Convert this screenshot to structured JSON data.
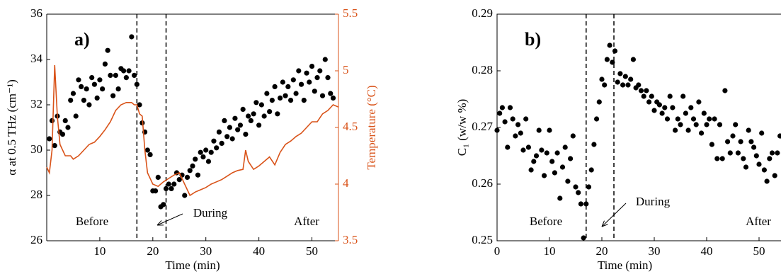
{
  "chart_data": [
    {
      "type": "scatter",
      "panel": "a)",
      "xlabel": "Time (min)",
      "ylabel": "α at 0.5 THz (cm⁻¹)",
      "y2label": "Temperature (°C)",
      "xlim": [
        0,
        55
      ],
      "xticks": [
        10,
        20,
        30,
        40,
        50
      ],
      "ylim": [
        26,
        36
      ],
      "yticks": [
        26,
        28,
        30,
        32,
        34,
        36
      ],
      "y2lim": [
        3.5,
        5.5
      ],
      "y2ticks": [
        3.5,
        4,
        4.5,
        5,
        5.5
      ],
      "vlines": [
        17,
        22.5
      ],
      "annotations": [
        "Before",
        "During",
        "After"
      ],
      "series": [
        {
          "type": "scatter",
          "color": "#000000",
          "x": [
            0.5,
            1,
            1.5,
            2,
            2.5,
            3,
            3.5,
            4,
            4.5,
            5,
            5.5,
            6,
            6.5,
            7,
            7.5,
            8,
            8.5,
            9,
            9.5,
            10,
            10.5,
            11,
            11.5,
            12,
            12.5,
            13,
            13.5,
            14,
            14.5,
            15,
            15.5,
            16,
            16.5,
            17,
            17.5,
            18,
            18.5,
            19,
            19.5,
            20,
            20.5,
            21,
            21.5,
            22,
            22.5,
            23,
            23.5,
            24,
            24.5,
            25,
            25.5,
            26,
            26.5,
            27,
            27.5,
            28,
            28.5,
            29,
            29.5,
            30,
            30.5,
            31,
            31.5,
            32,
            32.5,
            33,
            33.5,
            34,
            34.5,
            35,
            35.5,
            36,
            36.5,
            37,
            37.5,
            38,
            38.5,
            39,
            39.5,
            40,
            40.5,
            41,
            41.5,
            42,
            42.5,
            43,
            43.5,
            44,
            44.5,
            45,
            45.5,
            46,
            46.5,
            47,
            47.5,
            48,
            48.5,
            49,
            49.5,
            50,
            50.5,
            51,
            51.5,
            52,
            52.5,
            53,
            53.5,
            54
          ],
          "values": [
            30.5,
            31.3,
            30.2,
            31.5,
            30.8,
            30.7,
            31.3,
            31,
            32.2,
            32.5,
            31.5,
            33.1,
            32.8,
            32.2,
            32.7,
            32,
            33.2,
            32.9,
            32.3,
            33.1,
            32.7,
            33.8,
            34.4,
            33.3,
            32.4,
            33.3,
            32.7,
            33.6,
            33.5,
            33.2,
            33.5,
            35,
            33.3,
            32.9,
            32,
            31.2,
            30.8,
            30,
            29.8,
            28.2,
            28.2,
            28.8,
            27.5,
            27.6,
            28.3,
            28.5,
            28.3,
            28.5,
            29,
            28.7,
            28.9,
            28,
            28.8,
            29.1,
            29.3,
            29.6,
            28.9,
            29.9,
            29.7,
            30,
            29.5,
            29.9,
            30.4,
            30.1,
            30.8,
            30.3,
            31.3,
            30.6,
            31,
            30.5,
            31.4,
            30.9,
            31.1,
            31.8,
            30.7,
            31.5,
            31.3,
            31.6,
            32.1,
            31.1,
            32,
            31.5,
            32.5,
            31.7,
            32.2,
            32.8,
            31.6,
            32.3,
            33,
            32.4,
            32.8,
            32.2,
            33.1,
            32.5,
            33.5,
            32.9,
            32.2,
            33.4,
            33,
            33.7,
            32.6,
            33.2,
            33.5,
            32.4,
            34,
            33.2,
            32.5,
            32.3
          ]
        },
        {
          "type": "line",
          "color": "#d95319",
          "axis": "y2",
          "x": [
            0,
            0.5,
            1,
            1.5,
            2,
            2.5,
            3,
            3.5,
            4.5,
            5,
            6,
            7,
            8,
            9,
            10,
            11,
            12,
            13,
            14,
            15,
            16,
            16.5,
            17,
            17.5,
            18,
            18.5,
            19,
            19.5,
            20,
            21,
            22,
            23,
            24,
            25,
            26,
            27,
            28,
            29,
            30,
            31,
            32,
            33,
            34,
            35,
            36,
            37,
            37.5,
            38,
            39,
            40,
            41,
            42,
            43,
            44,
            45,
            46,
            47,
            48,
            49,
            50,
            51,
            52,
            53,
            54,
            55
          ],
          "values": [
            4.15,
            4.1,
            4.3,
            5.05,
            4.6,
            4.35,
            4.3,
            4.25,
            4.25,
            4.22,
            4.25,
            4.3,
            4.35,
            4.37,
            4.42,
            4.48,
            4.55,
            4.65,
            4.7,
            4.72,
            4.72,
            4.7,
            4.7,
            4.62,
            4.6,
            4.3,
            4.1,
            4.05,
            4,
            3.98,
            4.02,
            4.05,
            4.08,
            4.1,
            4,
            3.9,
            3.93,
            3.95,
            3.97,
            4,
            4.02,
            4.04,
            4.07,
            4.1,
            4.12,
            4.13,
            4.3,
            4.2,
            4.13,
            4.16,
            4.2,
            4.24,
            4.17,
            4.28,
            4.35,
            4.38,
            4.42,
            4.45,
            4.5,
            4.55,
            4.55,
            4.62,
            4.65,
            4.7,
            4.68
          ]
        }
      ]
    },
    {
      "type": "scatter",
      "panel": "b)",
      "xlabel": "Time (min)",
      "ylabel": "C₁ (w/w %)",
      "xlim": [
        0,
        55
      ],
      "xticks": [
        0,
        10,
        20,
        30,
        40,
        50
      ],
      "ylim": [
        0.25,
        0.29
      ],
      "yticks": [
        0.25,
        0.26,
        0.27,
        0.28,
        0.29
      ],
      "vlines": [
        17,
        22.3
      ],
      "annotations": [
        "Before",
        "During",
        "After"
      ],
      "series": [
        {
          "type": "scatter",
          "color": "#000000",
          "x": [
            0,
            0.5,
            1,
            1.5,
            2,
            2.5,
            3,
            3.5,
            4,
            4.5,
            5,
            5.5,
            6,
            6.5,
            7,
            7.5,
            8,
            8.5,
            9,
            9.5,
            10,
            10.5,
            11,
            11.5,
            12,
            12.5,
            13,
            13.5,
            14,
            14.5,
            15,
            15.5,
            16,
            16.5,
            17,
            17.5,
            18,
            18.5,
            19,
            19.5,
            20,
            20.5,
            21,
            21.5,
            22,
            22.5,
            23,
            23.5,
            24,
            24.5,
            25,
            25.5,
            26,
            26.5,
            27,
            27.5,
            28,
            28.5,
            29,
            29.5,
            30,
            30.5,
            31,
            31.5,
            32,
            32.5,
            33,
            33.5,
            34,
            34.5,
            35,
            35.5,
            36,
            36.5,
            37,
            37.5,
            38,
            38.5,
            39,
            39.5,
            40,
            40.5,
            41,
            41.5,
            42,
            42.5,
            43,
            43.5,
            44,
            44.5,
            45,
            45.5,
            46,
            46.5,
            47,
            47.5,
            48,
            48.5,
            49,
            49.5,
            50,
            50.5,
            51,
            51.5,
            52,
            52.5,
            53,
            53.5,
            54
          ],
          "values": [
            0.2695,
            0.2725,
            0.2735,
            0.271,
            0.2665,
            0.2735,
            0.2715,
            0.2685,
            0.2705,
            0.269,
            0.266,
            0.2715,
            0.2665,
            0.2625,
            0.264,
            0.265,
            0.2695,
            0.266,
            0.2615,
            0.2655,
            0.2695,
            0.264,
            0.262,
            0.2655,
            0.2575,
            0.263,
            0.2665,
            0.2605,
            0.2645,
            0.2685,
            0.2595,
            0.2585,
            0.2565,
            0.2505,
            0.2565,
            0.2595,
            0.2625,
            0.267,
            0.2715,
            0.2745,
            0.2785,
            0.2775,
            0.282,
            0.2845,
            0.2815,
            0.2835,
            0.278,
            0.2795,
            0.2775,
            0.279,
            0.2775,
            0.2785,
            0.282,
            0.277,
            0.2775,
            0.2765,
            0.2755,
            0.2765,
            0.2745,
            0.2755,
            0.273,
            0.2745,
            0.274,
            0.2725,
            0.2735,
            0.2715,
            0.2755,
            0.2735,
            0.2695,
            0.2715,
            0.2705,
            0.2755,
            0.2725,
            0.2695,
            0.2735,
            0.2715,
            0.2705,
            0.2745,
            0.269,
            0.2725,
            0.2705,
            0.2715,
            0.267,
            0.2715,
            0.2645,
            0.2705,
            0.2645,
            0.2765,
            0.2675,
            0.2655,
            0.2685,
            0.2705,
            0.2655,
            0.2675,
            0.2645,
            0.263,
            0.2695,
            0.2675,
            0.2665,
            0.265,
            0.2635,
            0.269,
            0.2625,
            0.2605,
            0.2645,
            0.2655,
            0.2615,
            0.2655,
            0.2685
          ]
        }
      ]
    }
  ]
}
